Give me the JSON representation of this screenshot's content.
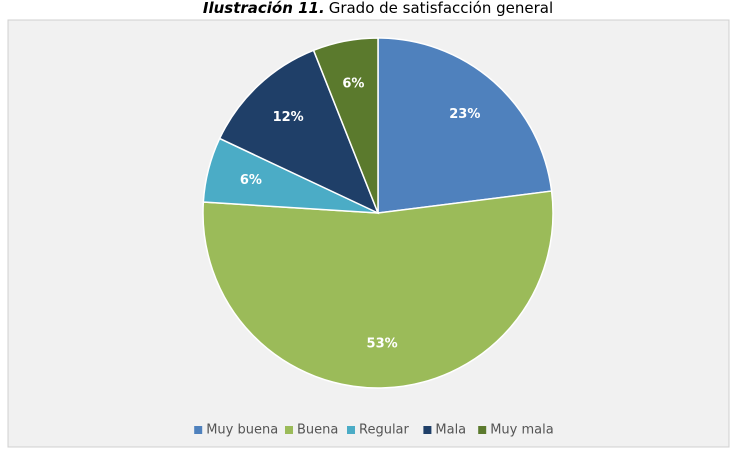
{
  "chart_data": {
    "type": "pie",
    "title_label": "Ilustración 11.",
    "title": "Grado de satisfacción general",
    "categories": [
      "Muy buena",
      "Buena",
      "Regular",
      "Mala",
      "Muy mala"
    ],
    "values": [
      23,
      53,
      6,
      12,
      6
    ],
    "value_labels": [
      "23%",
      "53%",
      "6%",
      "12%",
      "6%"
    ],
    "colors": [
      "#4f81bd",
      "#9bbb59",
      "#4bacc6",
      "#1f3f68",
      "#5b7a2d"
    ],
    "legend": "bottom"
  }
}
